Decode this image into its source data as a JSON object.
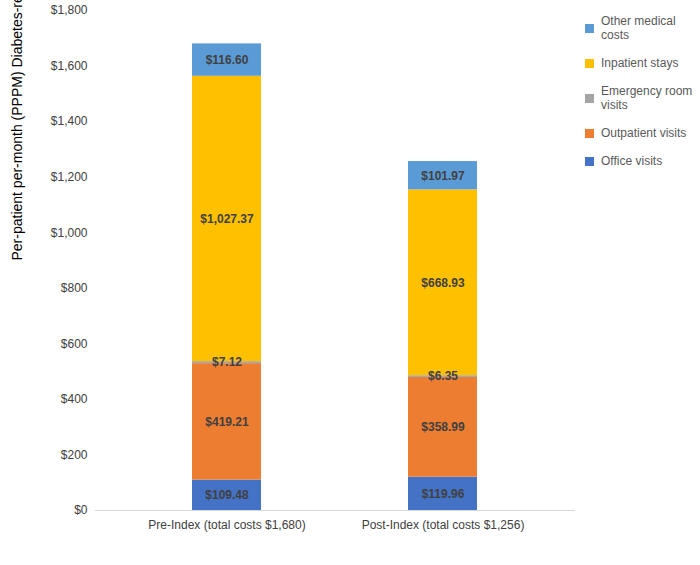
{
  "chart_data": {
    "type": "bar",
    "stacked": true,
    "data_labels": true,
    "legend": "right",
    "grid": false,
    "ylabel": "Per-patient per-month (PPPM) Diabetes-related  Costs",
    "categories": [
      "Pre-Index (total costs $1,680)",
      "Post-Index (total costs $1,256)"
    ],
    "ylim": [
      0,
      1800
    ],
    "yticks": [
      {
        "value": 0,
        "label": "$0"
      },
      {
        "value": 200,
        "label": "$200"
      },
      {
        "value": 400,
        "label": "$400"
      },
      {
        "value": 600,
        "label": "$600"
      },
      {
        "value": 800,
        "label": "$800"
      },
      {
        "value": 1000,
        "label": "$1,000"
      },
      {
        "value": 1200,
        "label": "$1,200"
      },
      {
        "value": 1400,
        "label": "$1,400"
      },
      {
        "value": 1600,
        "label": "$1,600"
      },
      {
        "value": 1800,
        "label": "$1,800"
      }
    ],
    "series": [
      {
        "name": "Office visits",
        "color": "#4472c4",
        "values": [
          109.48,
          119.96
        ],
        "value_labels": [
          "$109.48",
          "$119.96"
        ]
      },
      {
        "name": "Outpatient visits",
        "color": "#ed7d31",
        "values": [
          419.21,
          358.99
        ],
        "value_labels": [
          "$419.21",
          "$358.99"
        ]
      },
      {
        "name": "Emergency room visits",
        "color": "#a5a5a5",
        "values": [
          7.12,
          6.35
        ],
        "value_labels": [
          "$7.12",
          "$6.35"
        ]
      },
      {
        "name": "Inpatient stays",
        "color": "#ffc000",
        "values": [
          1027.37,
          668.93
        ],
        "value_labels": [
          "$1,027.37",
          "$668.93"
        ]
      },
      {
        "name": "Other medical costs",
        "color": "#5b9bd5",
        "values": [
          116.6,
          101.97
        ],
        "value_labels": [
          "$116.60",
          "$101.97"
        ]
      }
    ]
  }
}
